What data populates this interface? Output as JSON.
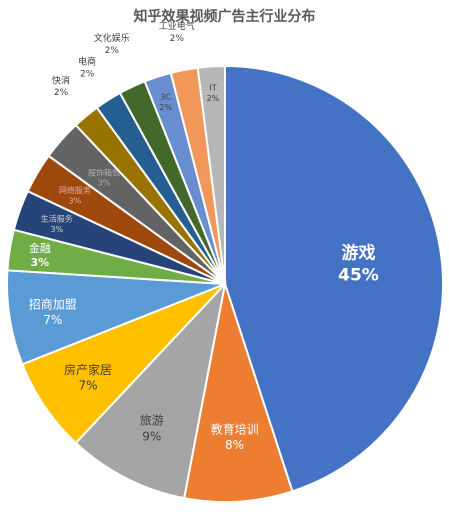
{
  "chart_data": {
    "type": "pie",
    "title": "知乎效果视频广告主行业分布",
    "slices": [
      {
        "label": "游戏",
        "value": 45,
        "value_label": "45%",
        "color": "#4472C4"
      },
      {
        "label": "教育培训",
        "value": 8,
        "value_label": "8%",
        "color": "#ED7D31"
      },
      {
        "label": "旅游",
        "value": 9,
        "value_label": "9%",
        "color": "#A5A5A5"
      },
      {
        "label": "房产家居",
        "value": 7,
        "value_label": "7%",
        "color": "#FFC000"
      },
      {
        "label": "招商加盟",
        "value": 7,
        "value_label": "7%",
        "color": "#5B9BD5"
      },
      {
        "label": "金融",
        "value": 3,
        "value_label": "3%",
        "color": "#70AD47"
      },
      {
        "label": "生活服务",
        "value": 3,
        "value_label": "3%",
        "color": "#264478"
      },
      {
        "label": "网络服务",
        "value": 3,
        "value_label": "3%",
        "color": "#9E480E"
      },
      {
        "label": "服饰箱包",
        "value": 3,
        "value_label": "3%",
        "color": "#636363"
      },
      {
        "label": "快消",
        "value": 2,
        "value_label": "2%",
        "color": "#997300"
      },
      {
        "label": "电商",
        "value": 2,
        "value_label": "2%",
        "color": "#255E91"
      },
      {
        "label": "文化娱乐",
        "value": 2,
        "value_label": "2%",
        "color": "#43682B"
      },
      {
        "label": "3C",
        "value": 2,
        "value_label": "2%",
        "color": "#698ED0"
      },
      {
        "label": "工业电气",
        "value": 2,
        "value_label": "2%",
        "color": "#F1975A"
      },
      {
        "label": "IT",
        "value": 2,
        "value_label": "2%",
        "color": "#B7B7B7"
      }
    ]
  }
}
